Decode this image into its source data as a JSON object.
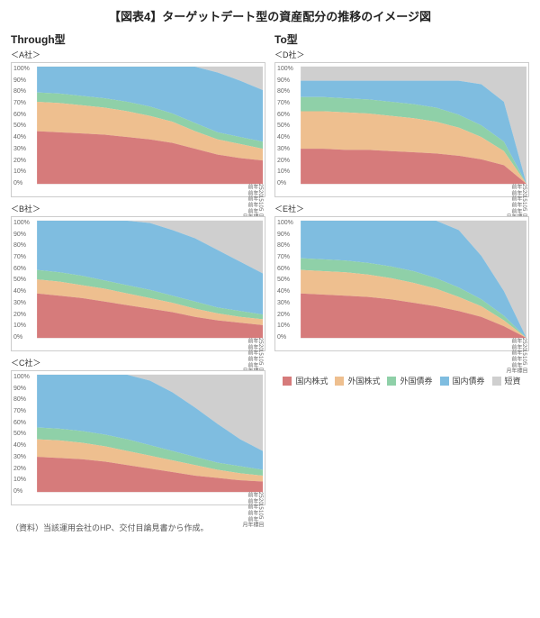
{
  "title": "【図表4】ターゲットデート型の資産配分の推移のイメージ図",
  "headers": {
    "left": "Through型",
    "right": "To型"
  },
  "footnote": "（資料）当該運用会社のHP、交付目論見書から作成。",
  "legend": [
    {
      "label": "国内株式",
      "color": "#d67b7b"
    },
    {
      "label": "外国株式",
      "color": "#eebf8f"
    },
    {
      "label": "外国債券",
      "color": "#8fd0a8"
    },
    {
      "label": "国内債券",
      "color": "#7fbde0"
    },
    {
      "label": "短資",
      "color": "#cfcfcf"
    }
  ],
  "y_ticks": [
    "0%",
    "10%",
    "20%",
    "30%",
    "40%",
    "50%",
    "60%",
    "70%",
    "80%",
    "90%",
    "100%"
  ],
  "x_ticks": [
    "25年前",
    "20年前",
    "15年前",
    "10年前",
    "5年前",
    "目標年月"
  ],
  "chart_style": {
    "background": "#ffffff",
    "grid_color": "#dddddd",
    "border_color": "#cccccc",
    "font_size_ticks": 7
  },
  "charts": {
    "A": {
      "label": "＜A社＞",
      "cum": {
        "domestic_stock": [
          45,
          44,
          43,
          42,
          40,
          38,
          35,
          30,
          25,
          22,
          20
        ],
        "foreign_stock": [
          70,
          69,
          67,
          65,
          62,
          58,
          53,
          45,
          38,
          34,
          30
        ],
        "foreign_bond": [
          78,
          77,
          75,
          73,
          70,
          66,
          60,
          52,
          44,
          40,
          36
        ],
        "domestic_bond": [
          100,
          100,
          100,
          100,
          100,
          100,
          100,
          100,
          95,
          88,
          80
        ],
        "cash": [
          100,
          100,
          100,
          100,
          100,
          100,
          100,
          100,
          100,
          100,
          100
        ]
      }
    },
    "B": {
      "label": "＜B社＞",
      "cum": {
        "domestic_stock": [
          38,
          36,
          34,
          31,
          28,
          25,
          22,
          18,
          15,
          13,
          11
        ],
        "foreign_stock": [
          50,
          48,
          45,
          42,
          38,
          34,
          30,
          25,
          21,
          18,
          16
        ],
        "foreign_bond": [
          58,
          56,
          53,
          49,
          45,
          41,
          36,
          31,
          26,
          23,
          20
        ],
        "domestic_bond": [
          100,
          100,
          100,
          100,
          100,
          98,
          92,
          85,
          75,
          65,
          55
        ],
        "cash": [
          100,
          100,
          100,
          100,
          100,
          100,
          100,
          100,
          100,
          100,
          100
        ]
      }
    },
    "C": {
      "label": "＜C社＞",
      "cum": {
        "domestic_stock": [
          30,
          29,
          28,
          26,
          23,
          20,
          17,
          14,
          12,
          10,
          9
        ],
        "foreign_stock": [
          45,
          44,
          42,
          39,
          35,
          31,
          27,
          23,
          19,
          16,
          14
        ],
        "foreign_bond": [
          55,
          54,
          52,
          49,
          45,
          40,
          35,
          30,
          25,
          22,
          19
        ],
        "domestic_bond": [
          100,
          100,
          100,
          100,
          100,
          95,
          85,
          72,
          58,
          45,
          35
        ],
        "cash": [
          100,
          100,
          100,
          100,
          100,
          100,
          100,
          100,
          100,
          100,
          100
        ]
      }
    },
    "D": {
      "label": "＜D社＞",
      "cum": {
        "domestic_stock": [
          30,
          30,
          29,
          29,
          28,
          27,
          26,
          24,
          21,
          16,
          0
        ],
        "foreign_stock": [
          62,
          62,
          61,
          60,
          58,
          56,
          53,
          48,
          40,
          28,
          0
        ],
        "foreign_bond": [
          74,
          74,
          73,
          72,
          70,
          68,
          65,
          59,
          50,
          36,
          0
        ],
        "domestic_bond": [
          88,
          88,
          88,
          88,
          88,
          88,
          88,
          88,
          85,
          70,
          0
        ],
        "cash": [
          100,
          100,
          100,
          100,
          100,
          100,
          100,
          100,
          100,
          100,
          100
        ]
      }
    },
    "E": {
      "label": "＜E社＞",
      "cum": {
        "domestic_stock": [
          38,
          37,
          36,
          35,
          33,
          30,
          27,
          23,
          18,
          10,
          0
        ],
        "foreign_stock": [
          58,
          57,
          56,
          54,
          51,
          47,
          42,
          35,
          27,
          15,
          0
        ],
        "foreign_bond": [
          68,
          67,
          66,
          64,
          61,
          57,
          51,
          43,
          33,
          19,
          0
        ],
        "domestic_bond": [
          100,
          100,
          100,
          100,
          100,
          100,
          100,
          92,
          70,
          40,
          0
        ],
        "cash": [
          100,
          100,
          100,
          100,
          100,
          100,
          100,
          100,
          100,
          100,
          100
        ]
      }
    }
  }
}
